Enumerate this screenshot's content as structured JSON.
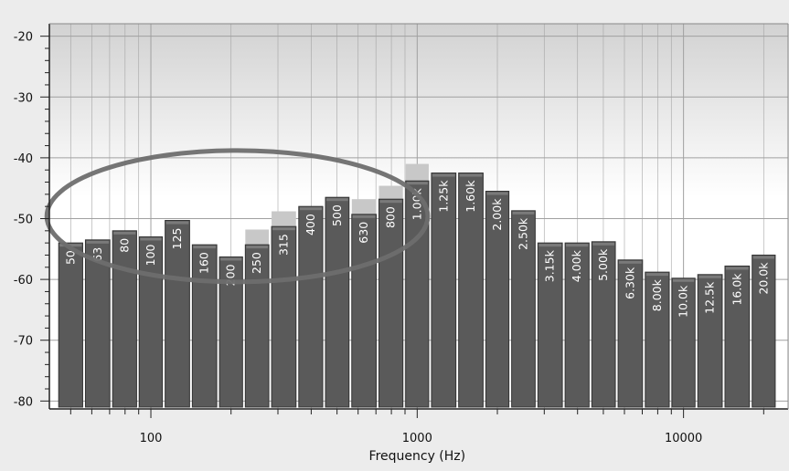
{
  "chart_data": {
    "type": "bar",
    "title": "",
    "xlabel": "Frequency (Hz)",
    "ylabel": "",
    "x_scale": "log",
    "xlim": [
      45,
      23000
    ],
    "ylim": [
      -81,
      -19
    ],
    "grid": true,
    "y_ticks": [
      -20,
      -30,
      -40,
      -50,
      -60,
      -70,
      -80
    ],
    "x_ticks": [
      {
        "value": 100,
        "label": "100"
      },
      {
        "value": 1000,
        "label": "1000"
      },
      {
        "value": 10000,
        "label": "10000"
      }
    ],
    "categories": [
      "50",
      "63",
      "80",
      "100",
      "125",
      "160",
      "200",
      "250",
      "315",
      "400",
      "500",
      "630",
      "800",
      "1.00k",
      "1.25k",
      "1.60k",
      "2.00k",
      "2.50k",
      "3.15k",
      "4.00k",
      "5.00k",
      "6.30k",
      "8.00k",
      "10.0k",
      "12.5k",
      "16.0k",
      "20.0k"
    ],
    "frequencies": [
      50,
      63,
      80,
      100,
      125,
      160,
      200,
      250,
      315,
      400,
      500,
      630,
      800,
      1000,
      1250,
      1600,
      2000,
      2500,
      3150,
      4000,
      5000,
      6300,
      8000,
      10000,
      12500,
      16000,
      20000
    ],
    "series": [
      {
        "color": "#5a5a5a",
        "values": [
          -54,
          -53.5,
          -52,
          -53,
          -50.3,
          -54.3,
          -56.3,
          -54.3,
          -51.3,
          -48,
          -46.5,
          -49.3,
          -46.8,
          -43.8,
          -42.5,
          -42.5,
          -45.5,
          -48.7,
          -54,
          -54,
          -53.8,
          -56.8,
          -58.8,
          -59.8,
          -59.2,
          -57.8,
          -56
        ]
      },
      {
        "color": "#c8c8c8",
        "values": [
          null,
          null,
          null,
          null,
          null,
          null,
          null,
          -51.8,
          -48.8,
          null,
          null,
          -46.8,
          -44.6,
          -41,
          null,
          null,
          null,
          null,
          null,
          null,
          null,
          null,
          null,
          null,
          null,
          null,
          null
        ]
      }
    ],
    "colors": {
      "background": "#ececec",
      "plot_top": "#d2d2d2",
      "plot_bottom": "#ffffff",
      "grid": "#a0a0a0",
      "bar": "#5a5a5a",
      "bar_light": "#c8c8c8",
      "ellipse": "#6e6e6e"
    },
    "annotations": [
      {
        "shape": "ellipse",
        "around": [
          "50",
          "1.00k"
        ]
      }
    ]
  }
}
